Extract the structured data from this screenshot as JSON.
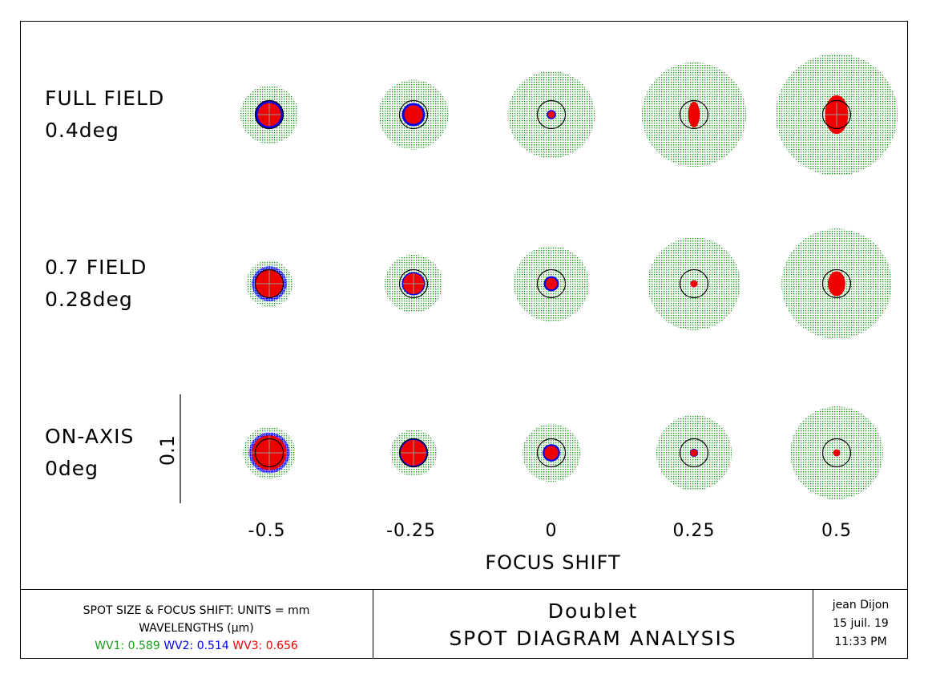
{
  "chart_data": {
    "type": "scatter",
    "title": "SPOT DIAGRAM ANALYSIS",
    "xlabel": "FOCUS SHIFT",
    "x": [
      "-0.5",
      "-0.25",
      "0",
      "0.25",
      "0.5"
    ],
    "rows": [
      {
        "line1": "FULL FIELD",
        "line2": "0.4deg"
      },
      {
        "line1": "0.7 FIELD",
        "line2": "0.28deg"
      },
      {
        "line1": "ON-AXIS",
        "line2": "0deg"
      }
    ],
    "scale_bar_label": "0.1",
    "scale_bar_value": 0.1,
    "series": [
      {
        "name": "WV1",
        "wavelength": 0.589,
        "color": "#1a9e1a"
      },
      {
        "name": "WV2",
        "wavelength": 0.514,
        "color": "#0000ee"
      },
      {
        "name": "WV3",
        "wavelength": 0.656,
        "color": "#ee0000"
      }
    ],
    "spot_sizes": {
      "green": [
        [
          0.05,
          0.06,
          0.075,
          0.09,
          0.105
        ],
        [
          0.04,
          0.05,
          0.065,
          0.08,
          0.095
        ],
        [
          0.045,
          0.04,
          0.05,
          0.065,
          0.08
        ]
      ],
      "blue": [
        [
          0.025,
          0.02,
          0.008,
          0.006,
          0.008
        ],
        [
          0.03,
          0.02,
          0.013,
          0.006,
          0.008
        ],
        [
          0.035,
          0.025,
          0.015,
          0.007,
          0.006
        ]
      ],
      "red": [
        [
          0.02,
          0.016,
          0.006,
          0.01,
          0.02
        ],
        [
          0.025,
          0.018,
          0.01,
          0.006,
          0.015
        ],
        [
          0.03,
          0.022,
          0.012,
          0.006,
          0.006
        ]
      ],
      "red_aspect": [
        [
          1.0,
          1.0,
          2.0,
          0.45,
          0.6
        ],
        [
          1.0,
          1.0,
          1.4,
          1.0,
          0.7
        ],
        [
          1.0,
          1.0,
          1.0,
          1.0,
          1.0
        ]
      ]
    }
  },
  "footer": {
    "units": "SPOT SIZE & FOCUS SHIFT: UNITS = mm",
    "wavelengths": "WAVELENGTHS (μm)",
    "wv1": "WV1: 0.589",
    "wv2": "WV2: 0.514",
    "wv3": "WV3: 0.656",
    "lens_name": "Doublet",
    "analysis": "SPOT DIAGRAM ANALYSIS",
    "user": "jean Dijon",
    "date": "15 juil. 19",
    "time": "11:33 PM"
  },
  "colors": {
    "green": "#1a9e1a",
    "blue": "#0000ee",
    "red": "#ee0000"
  }
}
